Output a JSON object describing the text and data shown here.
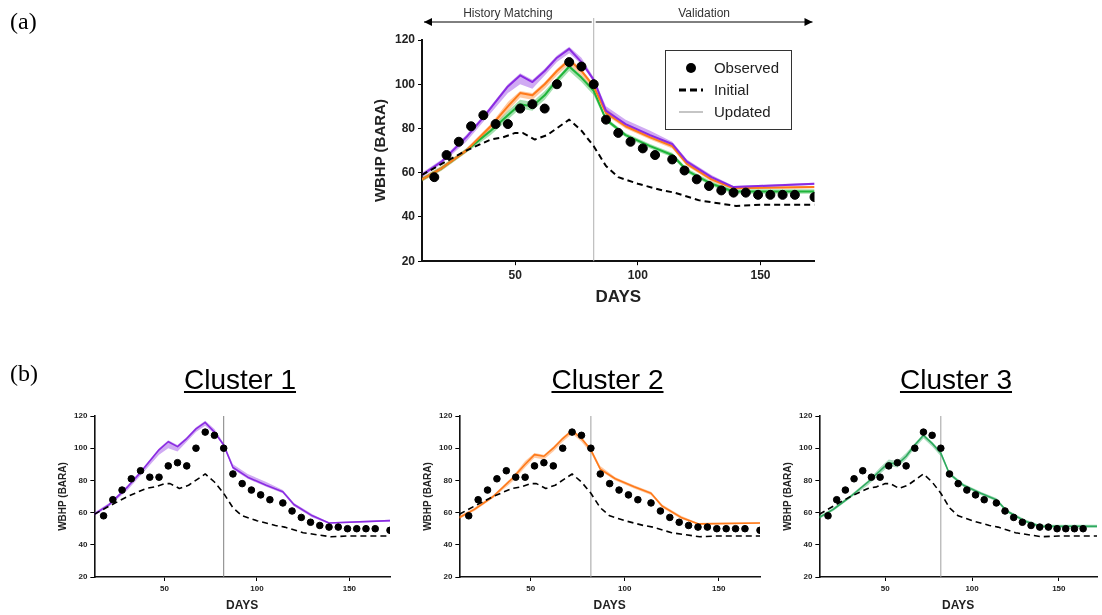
{
  "chart_data": [
    {
      "type": "line",
      "annotations": [
        "(a)",
        "History Matching",
        "Validation"
      ],
      "xlabel": "DAYS",
      "ylabel": "WBHP (BARA)",
      "xlim": [
        12,
        172
      ],
      "xticks": [
        50,
        100,
        150
      ],
      "ylim": [
        20,
        120
      ],
      "yticks": [
        20,
        40,
        60,
        80,
        100,
        120
      ],
      "grid": false,
      "legend": "top right",
      "ref_lines": [
        {
          "axis": "x",
          "value": 82,
          "color": "#b0b0b0"
        }
      ],
      "series": [
        {
          "name": "Observed",
          "type": "scatter",
          "marker": "circle",
          "color": "#000000",
          "x": [
            17,
            22,
            27,
            32,
            37,
            42,
            47,
            52,
            57,
            62,
            67,
            72,
            77,
            82,
            87,
            92,
            97,
            102,
            107,
            114,
            119,
            124,
            129,
            134,
            139,
            144,
            149,
            154,
            159,
            164,
            172
          ],
          "values": [
            58,
            68,
            74,
            81,
            86,
            82,
            82,
            89,
            91,
            89,
            100,
            110,
            108,
            100,
            84,
            78,
            74,
            71,
            68,
            66,
            61,
            57,
            54,
            52,
            51,
            51,
            50,
            50,
            50,
            50,
            49
          ]
        },
        {
          "name": "Initial",
          "type": "line",
          "line_style": "dashed",
          "color": "#000000",
          "x": [
            12,
            20,
            30,
            40,
            45,
            50,
            53,
            58,
            63,
            72,
            77,
            82,
            87,
            92,
            100,
            110,
            115,
            125,
            140,
            150,
            172
          ],
          "values": [
            59,
            64,
            70,
            75,
            76,
            78,
            78,
            75,
            77,
            84,
            79,
            72,
            63,
            58,
            55,
            52,
            51,
            47.5,
            45,
            45.5,
            45.5
          ]
        },
        {
          "name": "Updated",
          "type": "line",
          "color": "#9e9e9e"
        },
        {
          "type": "line",
          "color": "#8a2be2",
          "x": [
            12,
            20,
            30,
            37,
            47,
            52,
            57,
            62,
            67,
            72,
            77,
            82,
            87,
            95,
            105,
            114,
            120,
            130,
            139,
            172
          ],
          "values": [
            59,
            65,
            76,
            85,
            99,
            104,
            101,
            106,
            112,
            116,
            110,
            102,
            88,
            82,
            77,
            73,
            65,
            58,
            53.5,
            55
          ],
          "lower": [
            58,
            64,
            74,
            83,
            96,
            100,
            98,
            104,
            110,
            114,
            109,
            101,
            87,
            81,
            76,
            72,
            64,
            57,
            53,
            54.5
          ],
          "upper": [
            60,
            66,
            77,
            86,
            100,
            105,
            102,
            107,
            113,
            117,
            112,
            103,
            90,
            84,
            79,
            74,
            66,
            59,
            54,
            55.5
          ]
        },
        {
          "type": "line",
          "color": "#ff7a1a",
          "x": [
            12,
            20,
            30,
            40,
            47,
            52,
            57,
            62,
            67,
            72,
            77,
            82,
            87,
            95,
            105,
            114,
            120,
            130,
            139,
            172
          ],
          "values": [
            57,
            62,
            70,
            81,
            90,
            96,
            95,
            100,
            106,
            111,
            106,
            99,
            87,
            81,
            76,
            72,
            64,
            57,
            53,
            53.5
          ],
          "lower": [
            56,
            61,
            69,
            79,
            88,
            94,
            93,
            98,
            104,
            109,
            104,
            97,
            86,
            80,
            75,
            71,
            63,
            56,
            52.5,
            53
          ],
          "upper": [
            58,
            63,
            71,
            82,
            92,
            97,
            96,
            101,
            107,
            112,
            107,
            100,
            89,
            82,
            77,
            73,
            65,
            58,
            53.5,
            54
          ]
        },
        {
          "type": "line",
          "color": "#1fb53a",
          "x": [
            12,
            20,
            30,
            40,
            47,
            52,
            57,
            62,
            67,
            72,
            77,
            82,
            87,
            95,
            105,
            114,
            120,
            130,
            139,
            172
          ],
          "values": [
            57,
            62,
            70,
            79,
            86,
            91,
            90,
            95,
            102,
            108,
            103,
            97,
            84,
            77,
            72,
            68,
            61,
            55,
            51.5,
            51.5
          ],
          "lower": [
            56,
            61,
            69,
            77,
            84,
            89,
            88,
            93,
            100,
            106,
            101,
            95,
            83,
            76,
            71,
            67,
            60,
            54,
            50.5,
            50.5
          ],
          "upper": [
            58,
            63,
            71,
            80,
            88,
            93,
            92,
            97,
            103,
            109,
            104,
            98,
            85,
            78,
            73,
            69,
            62,
            56,
            52.5,
            52.5
          ]
        }
      ]
    },
    {
      "type": "line",
      "title": "Cluster 1",
      "annotations": [
        "(b)"
      ],
      "xlabel": "DAYS",
      "ylabel": "WBHP (BARA)",
      "xlim": [
        12,
        172
      ],
      "xticks": [
        50,
        100,
        150
      ],
      "ylim": [
        20,
        120
      ],
      "yticks": [
        20,
        40,
        60,
        80,
        100,
        120
      ],
      "grid": false,
      "ref_lines": [
        {
          "axis": "x",
          "value": 82,
          "color": "#808080"
        }
      ],
      "series": [
        {
          "type": "scatter",
          "marker": "circle",
          "color": "#000000",
          "x": [
            17,
            22,
            27,
            32,
            37,
            42,
            47,
            52,
            57,
            62,
            67,
            72,
            77,
            82,
            87,
            92,
            97,
            102,
            107,
            114,
            119,
            124,
            129,
            134,
            139,
            144,
            149,
            154,
            159,
            164,
            172
          ],
          "values": [
            58,
            68,
            74,
            81,
            86,
            82,
            82,
            89,
            91,
            89,
            100,
            110,
            108,
            100,
            84,
            78,
            74,
            71,
            68,
            66,
            61,
            57,
            54,
            52,
            51,
            51,
            50,
            50,
            50,
            50,
            49
          ]
        },
        {
          "type": "line",
          "line_style": "dashed",
          "color": "#000000",
          "x": [
            12,
            20,
            30,
            40,
            45,
            50,
            53,
            58,
            63,
            72,
            77,
            82,
            87,
            92,
            100,
            110,
            115,
            125,
            140,
            150,
            172
          ],
          "values": [
            59,
            64,
            70,
            75,
            76,
            78,
            78,
            75,
            77,
            84,
            79,
            72,
            63,
            58,
            55,
            52,
            51,
            47.5,
            45,
            45.5,
            45.5
          ]
        },
        {
          "type": "line",
          "color": "#8a2be2",
          "x": [
            12,
            20,
            30,
            37,
            47,
            52,
            57,
            62,
            67,
            72,
            77,
            82,
            87,
            95,
            105,
            114,
            120,
            130,
            139,
            172
          ],
          "values": [
            59,
            65,
            76,
            85,
            99,
            104,
            101,
            106,
            112,
            116,
            110,
            102,
            88,
            82,
            77,
            73,
            65,
            58,
            53.5,
            55
          ],
          "lower": [
            58,
            64,
            74,
            83,
            96,
            100,
            98,
            104,
            110,
            114,
            109,
            101,
            87,
            81,
            76,
            72,
            64,
            57,
            53,
            54.5
          ],
          "upper": [
            60,
            66,
            77,
            86,
            100,
            105,
            102,
            107,
            113,
            117,
            112,
            103,
            90,
            84,
            79,
            74,
            66,
            59,
            54,
            55.5
          ]
        }
      ]
    },
    {
      "type": "line",
      "title": "Cluster 2",
      "xlabel": "DAYS",
      "ylabel": "WBHP (BARA)",
      "xlim": [
        12,
        172
      ],
      "xticks": [
        50,
        100,
        150
      ],
      "ylim": [
        20,
        120
      ],
      "yticks": [
        20,
        40,
        60,
        80,
        100,
        120
      ],
      "grid": false,
      "ref_lines": [
        {
          "axis": "x",
          "value": 82,
          "color": "#a0a0a0"
        }
      ],
      "series": [
        {
          "type": "scatter",
          "marker": "circle",
          "color": "#000000",
          "x": [
            17,
            22,
            27,
            32,
            37,
            42,
            47,
            52,
            57,
            62,
            67,
            72,
            77,
            82,
            87,
            92,
            97,
            102,
            107,
            114,
            119,
            124,
            129,
            134,
            139,
            144,
            149,
            154,
            159,
            164,
            172
          ],
          "values": [
            58,
            68,
            74,
            81,
            86,
            82,
            82,
            89,
            91,
            89,
            100,
            110,
            108,
            100,
            84,
            78,
            74,
            71,
            68,
            66,
            61,
            57,
            54,
            52,
            51,
            51,
            50,
            50,
            50,
            50,
            49
          ]
        },
        {
          "type": "line",
          "line_style": "dashed",
          "color": "#000000",
          "x": [
            12,
            20,
            30,
            40,
            45,
            50,
            53,
            58,
            63,
            72,
            77,
            82,
            87,
            92,
            100,
            110,
            115,
            125,
            140,
            150,
            172
          ],
          "values": [
            59,
            64,
            70,
            75,
            76,
            78,
            78,
            75,
            77,
            84,
            79,
            72,
            63,
            58,
            55,
            52,
            51,
            47.5,
            45,
            45.5,
            45.5
          ]
        },
        {
          "type": "line",
          "color": "#ff7a1a",
          "x": [
            12,
            20,
            30,
            40,
            47,
            52,
            57,
            62,
            67,
            72,
            77,
            82,
            87,
            95,
            105,
            114,
            120,
            130,
            139,
            172
          ],
          "values": [
            57,
            62,
            70,
            81,
            90,
            96,
            95,
            100,
            106,
            111,
            106,
            99,
            87,
            81,
            76,
            72,
            64,
            57,
            53,
            53.5
          ],
          "lower": [
            56,
            61,
            69,
            79,
            88,
            94,
            93,
            98,
            104,
            109,
            104,
            97,
            86,
            80,
            75,
            71,
            63,
            56,
            52.5,
            53
          ],
          "upper": [
            58,
            63,
            71,
            82,
            92,
            97,
            96,
            101,
            107,
            112,
            107,
            100,
            89,
            82,
            77,
            73,
            65,
            58,
            53.5,
            54
          ]
        }
      ]
    },
    {
      "type": "line",
      "title": "Cluster 3",
      "xlabel": "DAYS",
      "ylabel": "WBHP (BARA)",
      "xlim": [
        12,
        172
      ],
      "xticks": [
        50,
        100,
        150
      ],
      "ylim": [
        20,
        120
      ],
      "yticks": [
        20,
        40,
        60,
        80,
        100,
        120
      ],
      "grid": false,
      "ref_lines": [
        {
          "axis": "x",
          "value": 82,
          "color": "#a0a0a0"
        }
      ],
      "series": [
        {
          "type": "scatter",
          "marker": "circle",
          "color": "#000000",
          "x": [
            17,
            22,
            27,
            32,
            37,
            42,
            47,
            52,
            57,
            62,
            67,
            72,
            77,
            82,
            87,
            92,
            97,
            102,
            107,
            114,
            119,
            124,
            129,
            134,
            139,
            144,
            149,
            154,
            159,
            164
          ],
          "values": [
            58,
            68,
            74,
            81,
            86,
            82,
            82,
            89,
            91,
            89,
            100,
            110,
            108,
            100,
            84,
            78,
            74,
            71,
            68,
            66,
            61,
            57,
            54,
            52,
            51,
            51,
            50,
            50,
            50,
            50
          ]
        },
        {
          "type": "line",
          "line_style": "dashed",
          "color": "#000000",
          "x": [
            12,
            20,
            30,
            40,
            45,
            50,
            53,
            58,
            63,
            72,
            77,
            82,
            87,
            92,
            100,
            110,
            115,
            125,
            140,
            150,
            172
          ],
          "values": [
            59,
            64,
            70,
            75,
            76,
            78,
            78,
            75,
            77,
            84,
            79,
            72,
            63,
            58,
            55,
            52,
            51,
            47.5,
            45,
            45.5,
            45.5
          ]
        },
        {
          "type": "line",
          "color": "#2eaa5e",
          "x": [
            12,
            20,
            30,
            40,
            47,
            52,
            57,
            62,
            67,
            72,
            77,
            82,
            87,
            95,
            105,
            114,
            120,
            130,
            139,
            172
          ],
          "values": [
            57,
            62,
            70,
            79,
            86,
            91,
            90,
            95,
            102,
            108,
            103,
            97,
            84,
            77,
            72,
            68,
            61,
            55,
            51.5,
            51.5
          ],
          "lower": [
            56,
            61,
            69,
            77,
            84,
            89,
            88,
            93,
            100,
            106,
            101,
            95,
            83,
            76,
            71,
            67,
            60,
            54,
            50.5,
            50.5
          ],
          "upper": [
            58,
            63,
            71,
            80,
            88,
            93,
            92,
            97,
            103,
            109,
            104,
            98,
            85,
            78,
            73,
            69,
            62,
            56,
            52.5,
            52.5
          ]
        }
      ]
    }
  ]
}
